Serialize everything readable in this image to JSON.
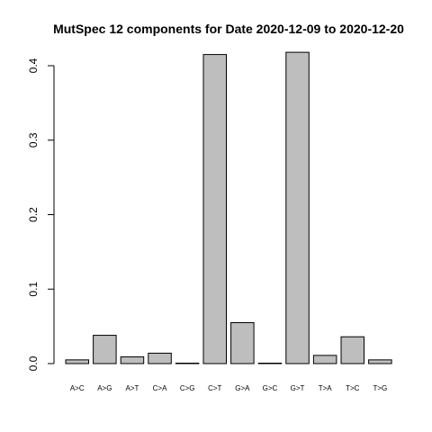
{
  "chart_data": {
    "type": "bar",
    "title": "MutSpec 12 components for Date 2020-12-09 to 2020-12-20",
    "xlabel": "",
    "ylabel": "",
    "categories": [
      "A>C",
      "A>G",
      "A>T",
      "C>A",
      "C>G",
      "C>T",
      "G>A",
      "G>C",
      "G>T",
      "T>A",
      "T>C",
      "T>G"
    ],
    "values": [
      0.005,
      0.038,
      0.009,
      0.014,
      0.0005,
      0.415,
      0.055,
      0.0005,
      0.418,
      0.011,
      0.036,
      0.005
    ],
    "yticks": [
      "0.0",
      "0.1",
      "0.2",
      "0.3",
      "0.4"
    ],
    "ylim": [
      0,
      0.4
    ],
    "bar_color": "#bebebe",
    "bar_stroke": "#000000",
    "grid": false,
    "legend": "none"
  }
}
